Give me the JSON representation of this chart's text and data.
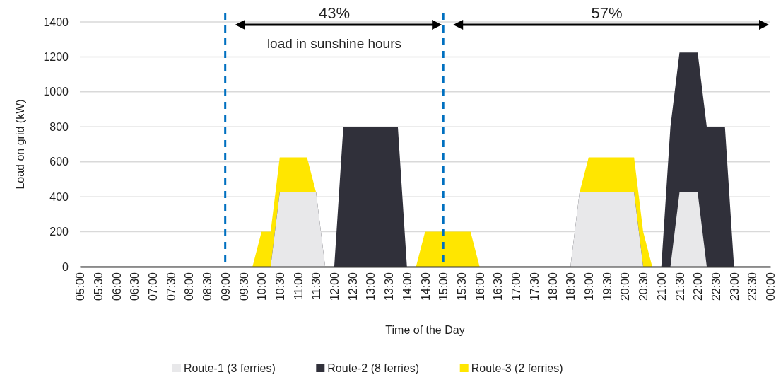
{
  "chart_data": {
    "type": "area",
    "stacked": true,
    "xlabel": "Time of the Day",
    "ylabel": "Load on grid (kW)",
    "x": [
      5,
      5.25,
      5.5,
      5.75,
      6,
      6.25,
      6.5,
      6.75,
      7,
      7.25,
      7.5,
      7.75,
      8,
      8.25,
      8.5,
      8.75,
      9,
      9.25,
      9.5,
      9.75,
      10,
      10.25,
      10.5,
      10.75,
      11,
      11.25,
      11.5,
      11.75,
      12,
      12.25,
      12.5,
      12.75,
      13,
      13.25,
      13.5,
      13.75,
      14,
      14.25,
      14.5,
      14.75,
      15,
      15.25,
      15.5,
      15.75,
      16,
      16.25,
      16.5,
      16.75,
      17,
      17.25,
      17.5,
      17.75,
      18,
      18.25,
      18.5,
      18.75,
      19,
      19.25,
      19.5,
      19.75,
      20,
      20.25,
      20.5,
      20.75,
      21,
      21.25,
      21.5,
      21.75,
      22,
      22.25,
      22.5,
      22.75,
      23,
      23.25,
      23.5,
      23.75,
      24
    ],
    "series": [
      {
        "name": "Route-1 (3 ferries)",
        "color": "#e8e8ea",
        "values": [
          0,
          0,
          0,
          0,
          0,
          0,
          0,
          0,
          0,
          0,
          0,
          0,
          0,
          0,
          0,
          0,
          0,
          0,
          0,
          0,
          0,
          0,
          425,
          425,
          425,
          425,
          425,
          0,
          0,
          0,
          0,
          0,
          0,
          0,
          0,
          0,
          0,
          0,
          0,
          0,
          0,
          0,
          0,
          0,
          0,
          0,
          0,
          0,
          0,
          0,
          0,
          0,
          0,
          0,
          0,
          425,
          425,
          425,
          425,
          425,
          425,
          425,
          0,
          0,
          0,
          0,
          425,
          425,
          425,
          0,
          0,
          0,
          0,
          0,
          0,
          0,
          0
        ]
      },
      {
        "name": "Route-2 (8 ferries)",
        "color": "#30303a",
        "values": [
          0,
          0,
          0,
          0,
          0,
          0,
          0,
          0,
          0,
          0,
          0,
          0,
          0,
          0,
          0,
          0,
          0,
          0,
          0,
          0,
          0,
          0,
          0,
          0,
          0,
          0,
          0,
          0,
          0,
          800,
          800,
          800,
          800,
          800,
          800,
          800,
          0,
          0,
          0,
          0,
          0,
          0,
          0,
          0,
          0,
          0,
          0,
          0,
          0,
          0,
          0,
          0,
          0,
          0,
          0,
          0,
          0,
          0,
          0,
          0,
          0,
          0,
          0,
          0,
          0,
          800,
          800,
          800,
          800,
          800,
          800,
          800,
          0,
          0,
          0,
          0,
          0
        ]
      },
      {
        "name": "Route-3 (2 ferries)",
        "color": "#ffe600",
        "values": [
          null,
          null,
          null,
          null,
          null,
          null,
          null,
          null,
          null,
          null,
          null,
          null,
          null,
          null,
          null,
          null,
          null,
          null,
          null,
          0,
          200,
          200,
          200,
          200,
          200,
          200,
          0,
          null,
          null,
          null,
          null,
          null,
          null,
          null,
          null,
          null,
          null,
          0,
          200,
          200,
          200,
          200,
          200,
          200,
          0,
          null,
          null,
          null,
          null,
          null,
          null,
          null,
          null,
          null,
          null,
          0,
          200,
          200,
          200,
          200,
          200,
          200,
          200,
          0,
          null,
          null,
          null,
          null,
          null,
          null,
          null,
          null,
          null,
          null,
          null,
          null,
          null
        ]
      }
    ],
    "xlim": [
      5,
      24
    ],
    "xticks": [
      {
        "value": 5,
        "label": "05:00"
      },
      {
        "value": 5.5,
        "label": "05:30"
      },
      {
        "value": 6,
        "label": "06:00"
      },
      {
        "value": 6.5,
        "label": "06:30"
      },
      {
        "value": 7,
        "label": "07:00"
      },
      {
        "value": 7.5,
        "label": "07:30"
      },
      {
        "value": 8,
        "label": "08:00"
      },
      {
        "value": 8.5,
        "label": "08:30"
      },
      {
        "value": 9,
        "label": "09:00"
      },
      {
        "value": 9.5,
        "label": "09:30"
      },
      {
        "value": 10,
        "label": "10:00"
      },
      {
        "value": 10.5,
        "label": "10:30"
      },
      {
        "value": 11,
        "label": "11:00"
      },
      {
        "value": 11.5,
        "label": "11:30"
      },
      {
        "value": 12,
        "label": "12:00"
      },
      {
        "value": 12.5,
        "label": "12:30"
      },
      {
        "value": 13,
        "label": "13:00"
      },
      {
        "value": 13.5,
        "label": "13:30"
      },
      {
        "value": 14,
        "label": "14:00"
      },
      {
        "value": 14.5,
        "label": "14:30"
      },
      {
        "value": 15,
        "label": "15:00"
      },
      {
        "value": 15.5,
        "label": "15:30"
      },
      {
        "value": 16,
        "label": "16:00"
      },
      {
        "value": 16.5,
        "label": "16:30"
      },
      {
        "value": 17,
        "label": "17:00"
      },
      {
        "value": 17.5,
        "label": "17:30"
      },
      {
        "value": 18,
        "label": "18:00"
      },
      {
        "value": 18.5,
        "label": "18:30"
      },
      {
        "value": 19,
        "label": "19:00"
      },
      {
        "value": 19.5,
        "label": "19:30"
      },
      {
        "value": 20,
        "label": "20:00"
      },
      {
        "value": 20.5,
        "label": "20:30"
      },
      {
        "value": 21,
        "label": "21:00"
      },
      {
        "value": 21.5,
        "label": "21:30"
      },
      {
        "value": 22,
        "label": "22:00"
      },
      {
        "value": 22.5,
        "label": "22:30"
      },
      {
        "value": 23,
        "label": "23:00"
      },
      {
        "value": 23.5,
        "label": "23:30"
      },
      {
        "value": 24,
        "label": "00:00"
      }
    ],
    "ylim": [
      0,
      1400
    ],
    "yticks": [
      0,
      200,
      400,
      600,
      800,
      1000,
      1200,
      1400
    ],
    "grid": "y",
    "legend": "bottom",
    "ref_lines": [
      {
        "axis": "x",
        "value": 9,
        "color": "#0070c0",
        "line_style": "dashed"
      },
      {
        "axis": "x",
        "value": 15,
        "color": "#0070c0",
        "line_style": "dashed"
      }
    ],
    "annotations": [
      "43%",
      "load in sunshine hours",
      "57%"
    ]
  }
}
